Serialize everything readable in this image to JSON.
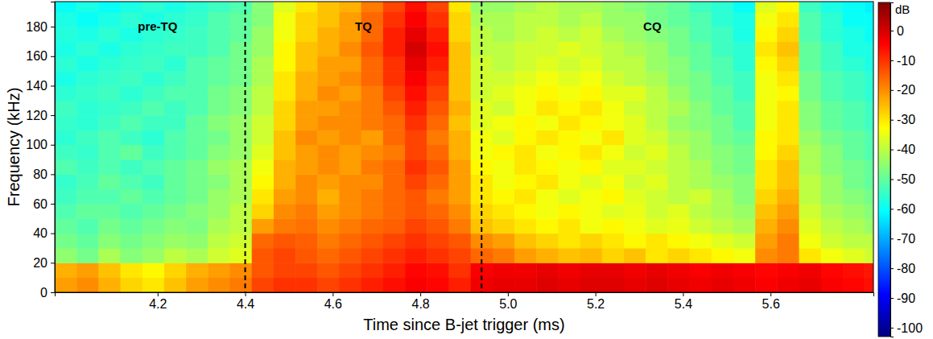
{
  "chart_data": {
    "type": "heatmap",
    "xlabel": "Time since B-jet trigger (ms)",
    "ylabel": "Frequency (kHz)",
    "x": [
      3.99,
      4.04,
      4.09,
      4.14,
      4.19,
      4.24,
      4.29,
      4.34,
      4.39,
      4.44,
      4.49,
      4.54,
      4.59,
      4.64,
      4.69,
      4.74,
      4.79,
      4.84,
      4.89,
      4.94,
      4.99,
      5.04,
      5.09,
      5.14,
      5.19,
      5.24,
      5.29,
      5.34,
      5.39,
      5.44,
      5.49,
      5.54,
      5.59,
      5.64,
      5.69,
      5.74,
      5.79,
      5.84
    ],
    "y": [
      5,
      15,
      25,
      35,
      45,
      55,
      65,
      75,
      85,
      95,
      105,
      115,
      125,
      135,
      145,
      155,
      165,
      175,
      185,
      195
    ],
    "values": [
      [
        -22,
        -20,
        -24,
        -28,
        -30,
        -26,
        -22,
        -20,
        -18,
        -12,
        -10,
        -10,
        -12,
        -10,
        -8,
        -6,
        -4,
        -5,
        -8,
        -3,
        -2,
        -2,
        -1,
        -2,
        -1,
        -1,
        -2,
        -1,
        -2,
        -3,
        -2,
        -3,
        -4,
        -3,
        -2,
        -4,
        -5,
        -6
      ],
      [
        -24,
        -22,
        -26,
        -30,
        -32,
        -28,
        -24,
        -22,
        -20,
        -14,
        -12,
        -12,
        -14,
        -12,
        -10,
        -8,
        -5,
        -6,
        -10,
        -4,
        -3,
        -3,
        -2,
        -3,
        -2,
        -2,
        -3,
        -2,
        -3,
        -4,
        -3,
        -4,
        -5,
        -4,
        -3,
        -5,
        -6,
        -7
      ],
      [
        -45,
        -48,
        -42,
        -46,
        -44,
        -40,
        -42,
        -38,
        -36,
        -14,
        -12,
        -14,
        -16,
        -14,
        -12,
        -10,
        -8,
        -10,
        -12,
        -16,
        -18,
        -22,
        -24,
        -26,
        -25,
        -28,
        -26,
        -30,
        -28,
        -30,
        -32,
        -34,
        -20,
        -18,
        -30,
        -34,
        -36,
        -38
      ],
      [
        -48,
        -50,
        -46,
        -48,
        -46,
        -44,
        -45,
        -40,
        -38,
        -16,
        -14,
        -15,
        -18,
        -16,
        -14,
        -12,
        -10,
        -12,
        -14,
        -20,
        -22,
        -26,
        -28,
        -30,
        -28,
        -30,
        -32,
        -30,
        -32,
        -34,
        -36,
        -38,
        -22,
        -18,
        -34,
        -38,
        -40,
        -40
      ],
      [
        -50,
        -52,
        -48,
        -50,
        -48,
        -46,
        -47,
        -42,
        -40,
        -22,
        -18,
        -17,
        -20,
        -18,
        -16,
        -15,
        -12,
        -14,
        -18,
        -26,
        -28,
        -30,
        -32,
        -30,
        -34,
        -32,
        -34,
        -36,
        -35,
        -38,
        -40,
        -42,
        -24,
        -20,
        -36,
        -40,
        -42,
        -44
      ],
      [
        -52,
        -50,
        -50,
        -52,
        -50,
        -48,
        -46,
        -44,
        -40,
        -28,
        -20,
        -18,
        -22,
        -20,
        -18,
        -16,
        -14,
        -16,
        -20,
        -28,
        -30,
        -32,
        -34,
        -32,
        -34,
        -36,
        -35,
        -38,
        -36,
        -40,
        -42,
        -44,
        -26,
        -22,
        -38,
        -42,
        -44,
        -46
      ],
      [
        -54,
        -52,
        -52,
        -50,
        -52,
        -50,
        -48,
        -44,
        -42,
        -30,
        -22,
        -20,
        -24,
        -20,
        -18,
        -16,
        -14,
        -18,
        -22,
        -30,
        -32,
        -30,
        -34,
        -36,
        -34,
        -32,
        -36,
        -38,
        -40,
        -38,
        -42,
        -46,
        -28,
        -24,
        -40,
        -44,
        -46,
        -48
      ],
      [
        -55,
        -53,
        -50,
        -52,
        -54,
        -50,
        -48,
        -46,
        -42,
        -32,
        -24,
        -20,
        -22,
        -20,
        -20,
        -16,
        -12,
        -16,
        -22,
        -30,
        -34,
        -32,
        -30,
        -34,
        -36,
        -34,
        -38,
        -36,
        -40,
        -42,
        -44,
        -46,
        -30,
        -26,
        -40,
        -44,
        -48,
        -50
      ],
      [
        -52,
        -54,
        -52,
        -54,
        -52,
        -50,
        -48,
        -44,
        -42,
        -34,
        -24,
        -22,
        -20,
        -22,
        -18,
        -16,
        -10,
        -14,
        -22,
        -32,
        -34,
        -30,
        -32,
        -34,
        -32,
        -36,
        -36,
        -38,
        -40,
        -42,
        -46,
        -48,
        -30,
        -26,
        -42,
        -46,
        -48,
        -50
      ],
      [
        -54,
        -55,
        -52,
        -50,
        -54,
        -52,
        -50,
        -46,
        -44,
        -36,
        -26,
        -22,
        -20,
        -22,
        -20,
        -18,
        -12,
        -16,
        -24,
        -34,
        -32,
        -30,
        -34,
        -32,
        -30,
        -34,
        -38,
        -36,
        -40,
        -44,
        -46,
        -48,
        -32,
        -28,
        -42,
        -46,
        -50,
        -52
      ],
      [
        -56,
        -54,
        -52,
        -54,
        -56,
        -52,
        -50,
        -48,
        -44,
        -38,
        -26,
        -20,
        -22,
        -20,
        -22,
        -16,
        -12,
        -18,
        -24,
        -34,
        -36,
        -32,
        -30,
        -32,
        -34,
        -30,
        -36,
        -38,
        -42,
        -44,
        -48,
        -50,
        -32,
        -30,
        -44,
        -48,
        -50,
        -52
      ],
      [
        -55,
        -56,
        -54,
        -52,
        -54,
        -54,
        -50,
        -46,
        -44,
        -38,
        -28,
        -22,
        -20,
        -20,
        -18,
        -16,
        -10,
        -16,
        -26,
        -36,
        -34,
        -32,
        -34,
        -30,
        -32,
        -34,
        -36,
        -40,
        -44,
        -46,
        -48,
        -52,
        -34,
        -30,
        -46,
        -50,
        -52,
        -54
      ],
      [
        -54,
        -56,
        -55,
        -54,
        -52,
        -54,
        -52,
        -48,
        -46,
        -40,
        -28,
        -22,
        -22,
        -20,
        -18,
        -14,
        -8,
        -14,
        -24,
        -36,
        -38,
        -34,
        -30,
        -32,
        -30,
        -34,
        -38,
        -40,
        -42,
        -46,
        -50,
        -52,
        -34,
        -30,
        -46,
        -50,
        -52,
        -54
      ],
      [
        -56,
        -55,
        -54,
        -56,
        -54,
        -52,
        -52,
        -48,
        -46,
        -40,
        -30,
        -24,
        -20,
        -22,
        -18,
        -12,
        -6,
        -12,
        -26,
        -38,
        -36,
        -34,
        -32,
        -34,
        -32,
        -36,
        -36,
        -40,
        -44,
        -48,
        -50,
        -54,
        -34,
        -32,
        -48,
        -52,
        -54,
        -56
      ],
      [
        -58,
        -56,
        -55,
        -54,
        -56,
        -54,
        -52,
        -50,
        -48,
        -42,
        -30,
        -24,
        -22,
        -20,
        -16,
        -10,
        -4,
        -10,
        -26,
        -38,
        -38,
        -36,
        -34,
        -36,
        -34,
        -38,
        -40,
        -42,
        -46,
        -48,
        -52,
        -54,
        -34,
        -30,
        -48,
        -52,
        -54,
        -56
      ],
      [
        -56,
        -58,
        -56,
        -55,
        -54,
        -56,
        -52,
        -50,
        -48,
        -42,
        -32,
        -26,
        -22,
        -22,
        -16,
        -10,
        -2,
        -8,
        -26,
        -38,
        -40,
        -38,
        -36,
        -38,
        -36,
        -40,
        -40,
        -44,
        -46,
        -50,
        -52,
        -56,
        -32,
        -28,
        -50,
        -54,
        -56,
        -58
      ],
      [
        -58,
        -56,
        -58,
        -56,
        -55,
        -54,
        -54,
        -52,
        -48,
        -44,
        -32,
        -26,
        -24,
        -20,
        -14,
        -8,
        0,
        -6,
        -26,
        -40,
        -40,
        -38,
        -38,
        -36,
        -38,
        -40,
        -42,
        -44,
        -48,
        -50,
        -54,
        -56,
        -30,
        -26,
        -50,
        -54,
        -58,
        -58
      ],
      [
        -57,
        -58,
        -56,
        -58,
        -56,
        -55,
        -54,
        -52,
        -50,
        -44,
        -34,
        -28,
        -24,
        -22,
        -16,
        -8,
        -2,
        -8,
        -28,
        -40,
        -42,
        -40,
        -38,
        -40,
        -38,
        -42,
        -44,
        -46,
        -48,
        -52,
        -54,
        -58,
        -32,
        -28,
        -52,
        -56,
        -58,
        -60
      ],
      [
        -58,
        -60,
        -58,
        -56,
        -58,
        -56,
        -55,
        -52,
        -50,
        -46,
        -34,
        -28,
        -26,
        -22,
        -16,
        -10,
        -4,
        -10,
        -28,
        -42,
        -42,
        -40,
        -40,
        -42,
        -40,
        -44,
        -44,
        -48,
        -50,
        -52,
        -56,
        -58,
        -34,
        -30,
        -52,
        -56,
        -60,
        -60
      ],
      [
        -60,
        -58,
        -60,
        -58,
        -56,
        -58,
        -56,
        -54,
        -52,
        -46,
        -36,
        -30,
        -26,
        -24,
        -18,
        -12,
        -6,
        -12,
        -30,
        -44,
        -44,
        -42,
        -40,
        -42,
        -42,
        -44,
        -46,
        -48,
        -50,
        -54,
        -56,
        -60,
        -36,
        -32,
        -54,
        -58,
        -60,
        -62
      ]
    ],
    "xlim": [
      3.965,
      5.835
    ],
    "ylim": [
      0,
      197
    ],
    "xticks": [
      4.2,
      4.4,
      4.6,
      4.8,
      {
        "value": 5,
        "label": "5.0"
      },
      5.2,
      5.4,
      5.6
    ],
    "yticks": [
      0,
      20,
      40,
      60,
      80,
      100,
      120,
      140,
      160,
      180
    ],
    "colorbar": {
      "label": "dB",
      "range": [
        -103,
        9.5
      ],
      "ticks": [
        0,
        -10,
        -20,
        -30,
        -40,
        -50,
        -60,
        -70,
        -80,
        -90,
        -100
      ]
    },
    "vlines": [
      4.4,
      4.94
    ],
    "annotations": [
      {
        "text": "pre-TQ",
        "x": 4.2,
        "y": 180
      },
      {
        "text": "TQ",
        "x": 4.67,
        "y": 180
      },
      {
        "text": "CQ",
        "x": 5.33,
        "y": 180
      }
    ]
  }
}
